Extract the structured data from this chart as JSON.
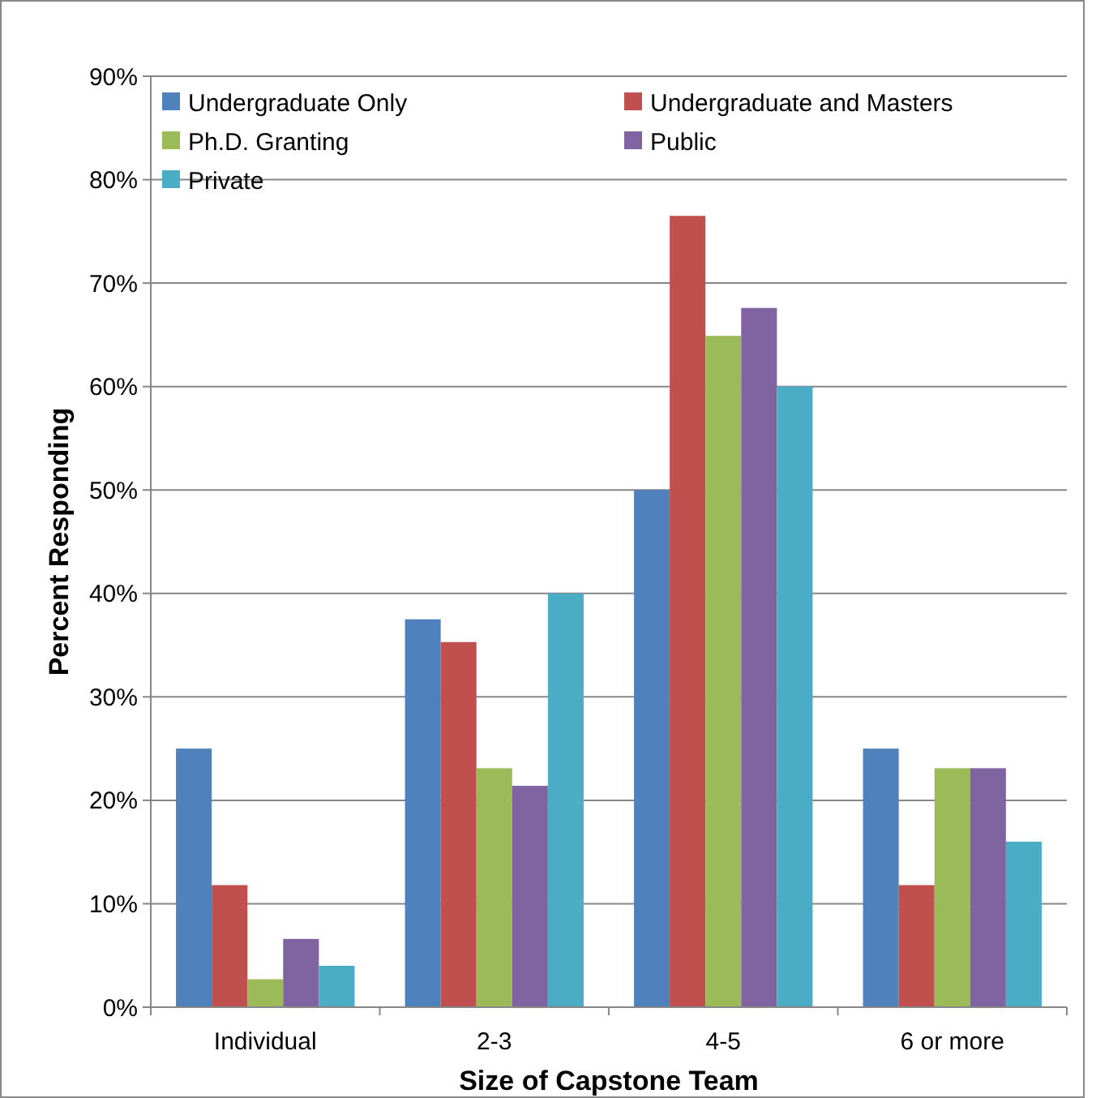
{
  "chart_data": {
    "type": "bar",
    "xlabel": "Size of Capstone Team",
    "ylabel": "Percent Responding",
    "categories": [
      "Individual",
      "2-3",
      "4-5",
      "6 or more"
    ],
    "series": [
      {
        "name": "Undergraduate Only",
        "color": "#4f81bd",
        "values": [
          25,
          37.5,
          50,
          25
        ]
      },
      {
        "name": "Undergraduate and Masters",
        "color": "#c0504d",
        "values": [
          11.8,
          35.3,
          76.5,
          11.8
        ]
      },
      {
        "name": "Ph.D. Granting",
        "color": "#9bbb59",
        "values": [
          2.7,
          23.1,
          64.9,
          23.1
        ]
      },
      {
        "name": "Public",
        "color": "#8064a2",
        "values": [
          6.6,
          21.4,
          67.6,
          23.1
        ]
      },
      {
        "name": "Private",
        "color": "#4bacc6",
        "values": [
          4,
          40,
          60,
          16
        ]
      }
    ],
    "ylim": [
      0,
      90
    ],
    "yticks": [
      {
        "value": 0,
        "label": "0%"
      },
      {
        "value": 10,
        "label": "10%"
      },
      {
        "value": 20,
        "label": "20%"
      },
      {
        "value": 30,
        "label": "30%"
      },
      {
        "value": 40,
        "label": "40%"
      },
      {
        "value": 50,
        "label": "50%"
      },
      {
        "value": 60,
        "label": "60%"
      },
      {
        "value": 70,
        "label": "70%"
      },
      {
        "value": 80,
        "label": "80%"
      },
      {
        "value": 90,
        "label": "90%"
      }
    ],
    "grid": "y",
    "legend": "top"
  }
}
